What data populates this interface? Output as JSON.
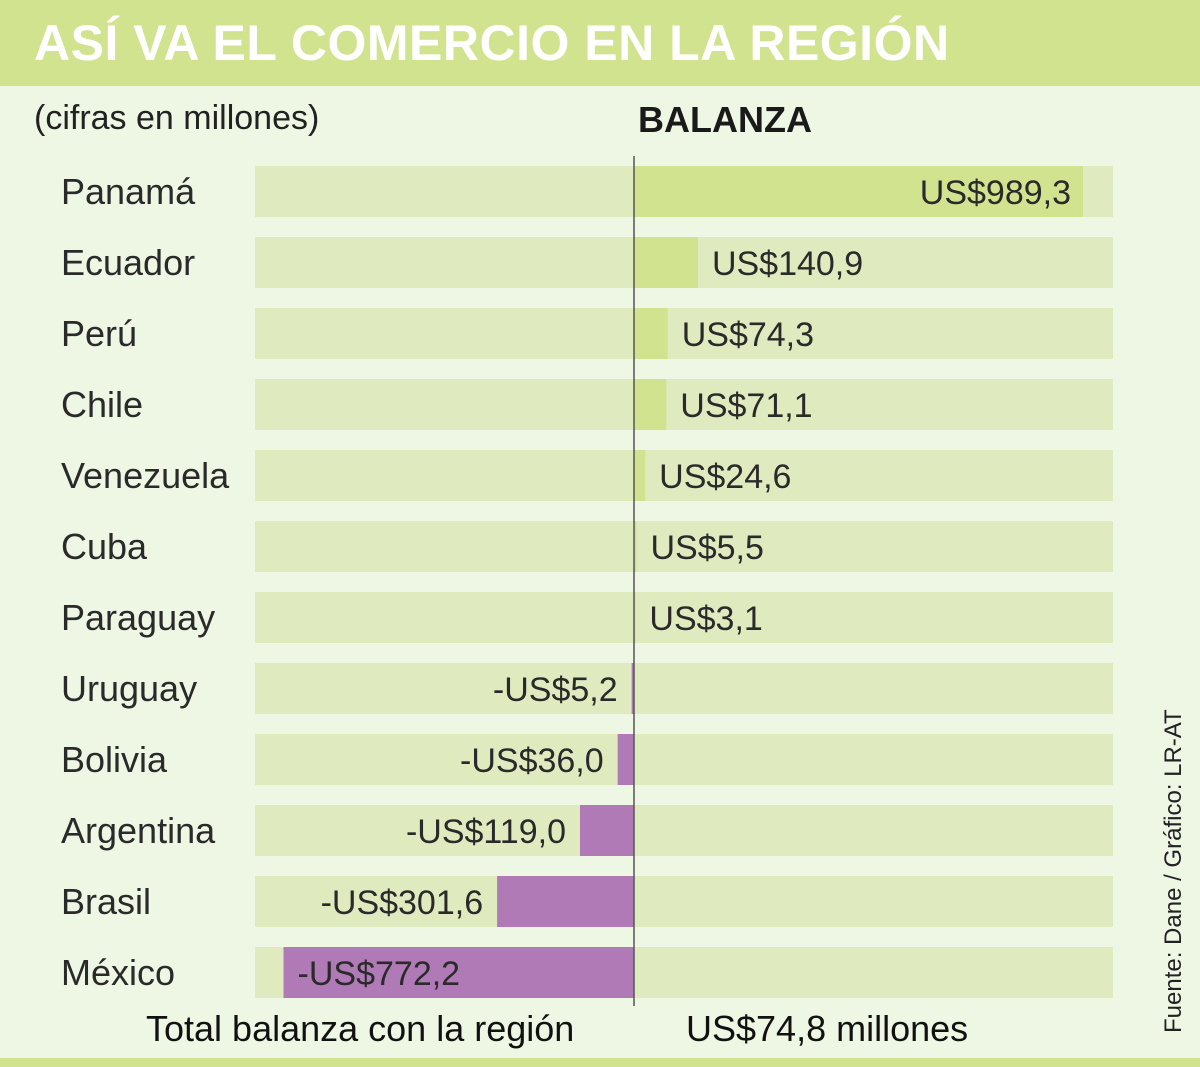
{
  "header": {
    "title": "ASÍ VA EL COMERCIO EN LA REGIÓN"
  },
  "subtitle": "(cifras en millones)",
  "section_title": "BALANZA",
  "total": {
    "label": "Total balanza con la región",
    "value": "US$74,8 millones"
  },
  "source": "Fuente: Dane / Gráfico: LR-AT",
  "colors": {
    "positive": "#d1e38f",
    "negative": "#b07ab6",
    "track": "#dfeabf",
    "header": "#d1e38f"
  },
  "chart_data": {
    "type": "bar",
    "orientation": "horizontal",
    "title": "ASÍ VA EL COMERCIO EN LA REGIÓN",
    "unit": "millones",
    "categories": [
      "Panamá",
      "Ecuador",
      "Perú",
      "Chile",
      "Venezuela",
      "Cuba",
      "Paraguay",
      "Uruguay",
      "Bolivia",
      "Argentina",
      "Brasil",
      "México"
    ],
    "values": [
      989.3,
      140.9,
      74.3,
      71.1,
      24.6,
      5.5,
      3.1,
      -5.2,
      -36.0,
      -119.0,
      -301.6,
      -772.2
    ],
    "value_labels": [
      "US$989,3",
      "US$140,9",
      "US$74,3",
      "US$71,1",
      "US$24,6",
      "US$5,5",
      "US$3,1",
      "-US$5,2",
      "-US$36,0",
      "-US$119,0",
      "-US$301,6",
      "-US$772,2"
    ],
    "series": [
      {
        "name": "BALANZA",
        "values": [
          989.3,
          140.9,
          74.3,
          71.1,
          24.6,
          5.5,
          3.1,
          -5.2,
          -36.0,
          -119.0,
          -301.6,
          -772.2
        ]
      }
    ],
    "xlim": [
      -830,
      1050
    ],
    "grid": false
  }
}
